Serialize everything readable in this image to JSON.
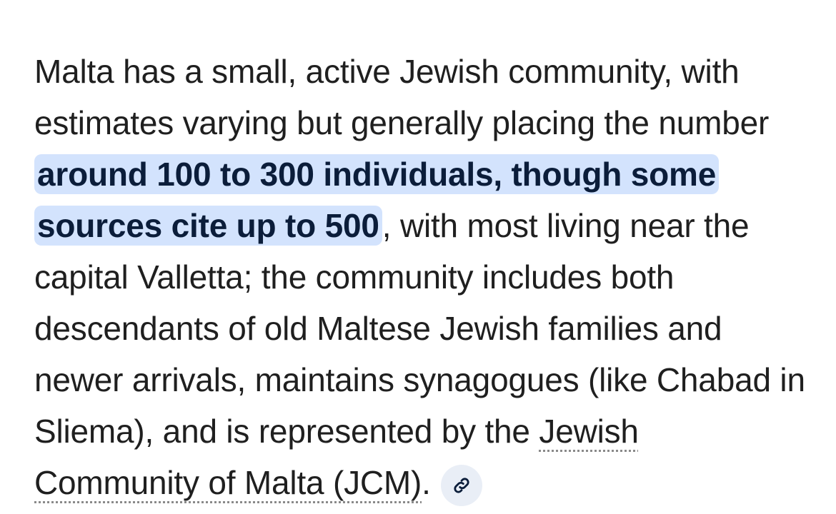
{
  "paragraph": {
    "intro": "Malta has a small, active Jewish community, with estimates varying but generally placing the number",
    "highlight": "around 100 to 300 individuals, though some sources cite up to 500",
    "middle": ", with most living near the capital Valletta; the community includes both descendants of old Maltese Jewish families and newer arrivals, maintains synagogues (like Chabad in Sliema), and is represented by the",
    "link": "Jewish Community of Malta (JCM)",
    "end": "."
  }
}
